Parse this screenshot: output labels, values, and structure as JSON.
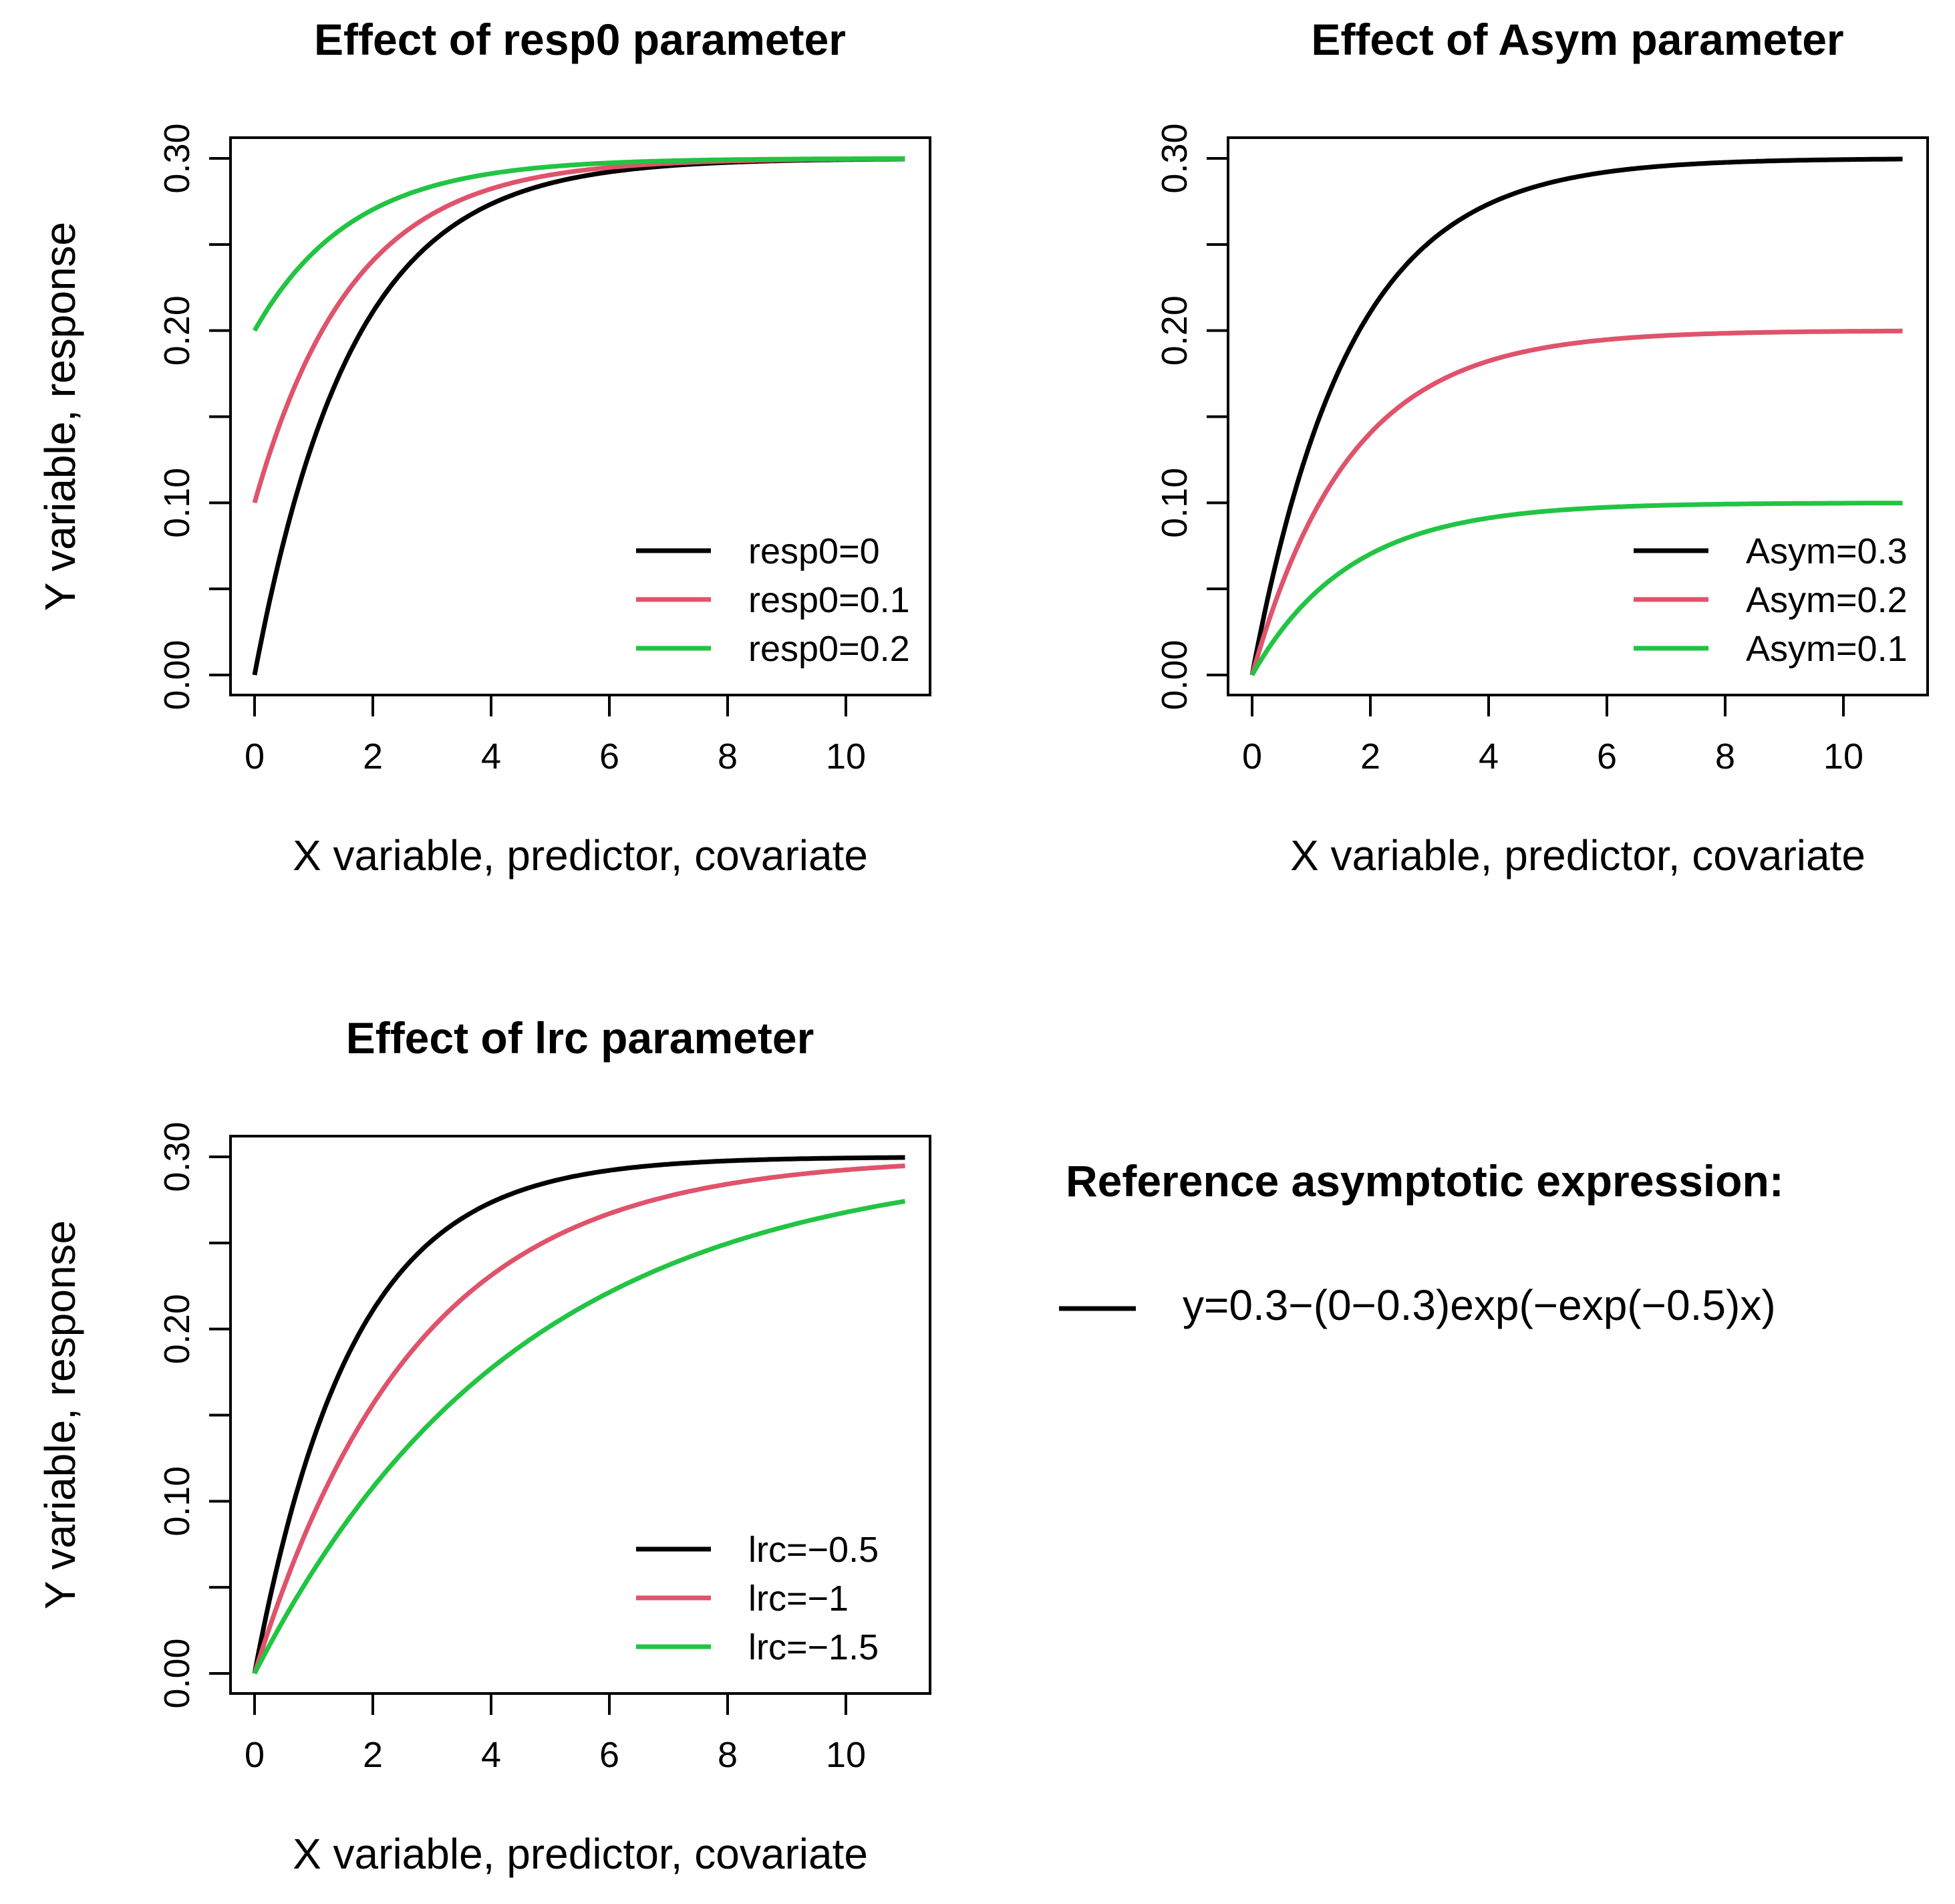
{
  "chart_data": [
    {
      "type": "line",
      "title": "Effect of resp0 parameter",
      "xlabel": "X variable, predictor, covariate",
      "ylabel": "Y variable, response",
      "xlim": [
        0,
        11
      ],
      "ylim": [
        0,
        0.3
      ],
      "xticks": [
        0,
        2,
        4,
        6,
        8,
        10
      ],
      "xtick_labels": [
        "0",
        "2",
        "4",
        "6",
        "8",
        "10"
      ],
      "yticks": [
        0,
        0.05,
        0.1,
        0.15,
        0.2,
        0.25,
        0.3
      ],
      "ytick_labels": [
        "0.00",
        "",
        "0.10",
        "",
        "0.20",
        "",
        "0.30"
      ],
      "legend_position": "bottom-right",
      "series": [
        {
          "name": "resp0=0",
          "color": "#000000",
          "asym": 0.3,
          "r0": 0.0,
          "lrc": -0.5
        },
        {
          "name": "resp0=0.1",
          "color": "#df536b",
          "asym": 0.3,
          "r0": 0.1,
          "lrc": -0.5
        },
        {
          "name": "resp0=0.2",
          "color": "#22c443",
          "asym": 0.3,
          "r0": 0.2,
          "lrc": -0.5
        }
      ]
    },
    {
      "type": "line",
      "title": "Effect of Asym parameter",
      "xlabel": "X variable, predictor, covariate",
      "ylabel": "Y variable, response",
      "xlim": [
        0,
        11
      ],
      "ylim": [
        0,
        0.3
      ],
      "xticks": [
        0,
        2,
        4,
        6,
        8,
        10
      ],
      "xtick_labels": [
        "0",
        "2",
        "4",
        "6",
        "8",
        "10"
      ],
      "yticks": [
        0,
        0.05,
        0.1,
        0.15,
        0.2,
        0.25,
        0.3
      ],
      "ytick_labels": [
        "0.00",
        "",
        "0.10",
        "",
        "0.20",
        "",
        "0.30"
      ],
      "legend_position": "bottom-right",
      "series": [
        {
          "name": "Asym=0.3",
          "color": "#000000",
          "asym": 0.3,
          "r0": 0.0,
          "lrc": -0.5
        },
        {
          "name": "Asym=0.2",
          "color": "#df536b",
          "asym": 0.2,
          "r0": 0.0,
          "lrc": -0.5
        },
        {
          "name": "Asym=0.1",
          "color": "#22c443",
          "asym": 0.1,
          "r0": 0.0,
          "lrc": -0.5
        }
      ]
    },
    {
      "type": "line",
      "title": "Effect of lrc parameter",
      "xlabel": "X variable, predictor, covariate",
      "ylabel": "Y variable, response",
      "xlim": [
        0,
        11
      ],
      "ylim": [
        0,
        0.3
      ],
      "xticks": [
        0,
        2,
        4,
        6,
        8,
        10
      ],
      "xtick_labels": [
        "0",
        "2",
        "4",
        "6",
        "8",
        "10"
      ],
      "yticks": [
        0,
        0.05,
        0.1,
        0.15,
        0.2,
        0.25,
        0.3
      ],
      "ytick_labels": [
        "0.00",
        "",
        "0.10",
        "",
        "0.20",
        "",
        "0.30"
      ],
      "legend_position": "bottom-right",
      "series": [
        {
          "name": "lrc=−0.5",
          "color": "#000000",
          "asym": 0.3,
          "r0": 0.0,
          "lrc": -0.5
        },
        {
          "name": "lrc=−1",
          "color": "#df536b",
          "asym": 0.3,
          "r0": 0.0,
          "lrc": -1.0
        },
        {
          "name": "lrc=−1.5",
          "color": "#22c443",
          "asym": 0.3,
          "r0": 0.0,
          "lrc": -1.5
        }
      ]
    }
  ],
  "reference": {
    "title": "Reference asymptotic expression:",
    "expression": "y=0.3−(0−0.3)exp(−exp(−0.5)x)",
    "line_color": "#000000"
  }
}
